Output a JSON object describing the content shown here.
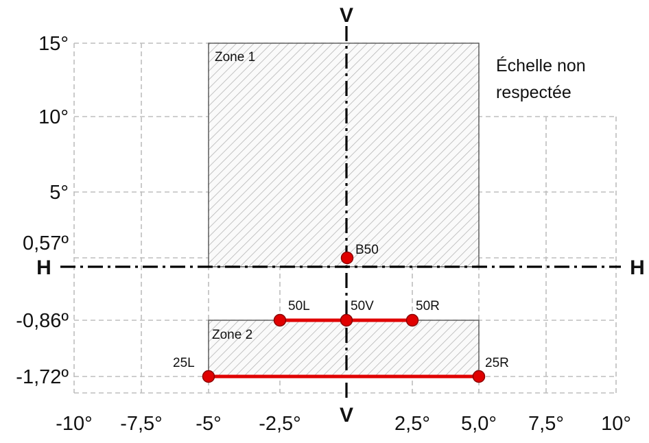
{
  "x_ticks": [
    "-10°",
    "-7,5°",
    "-5°",
    "-2,5°",
    "2,5°",
    "5,0°",
    "7,5°",
    "10°"
  ],
  "y_ticks": {
    "t15": "15°",
    "t10": "10°",
    "t5": "5°",
    "t057": "0,57º",
    "tm086": "-0,86º",
    "tm172": "-1,72º"
  },
  "axes": {
    "v_top": "V",
    "v_bottom": "V",
    "h_left": "H",
    "h_right": "H"
  },
  "zones": {
    "zone1": "Zone 1",
    "zone2": "Zone 2"
  },
  "points": {
    "b50": "B50",
    "p50l": "50L",
    "p50v": "50V",
    "p50r": "50R",
    "p25l": "25L",
    "p25r": "25R"
  },
  "note": {
    "line1": "Échelle non",
    "line2": "respectée"
  },
  "colors": {
    "red": "#e00000",
    "grid": "#bdbdbd",
    "hatch": "#b5b5b5"
  }
}
